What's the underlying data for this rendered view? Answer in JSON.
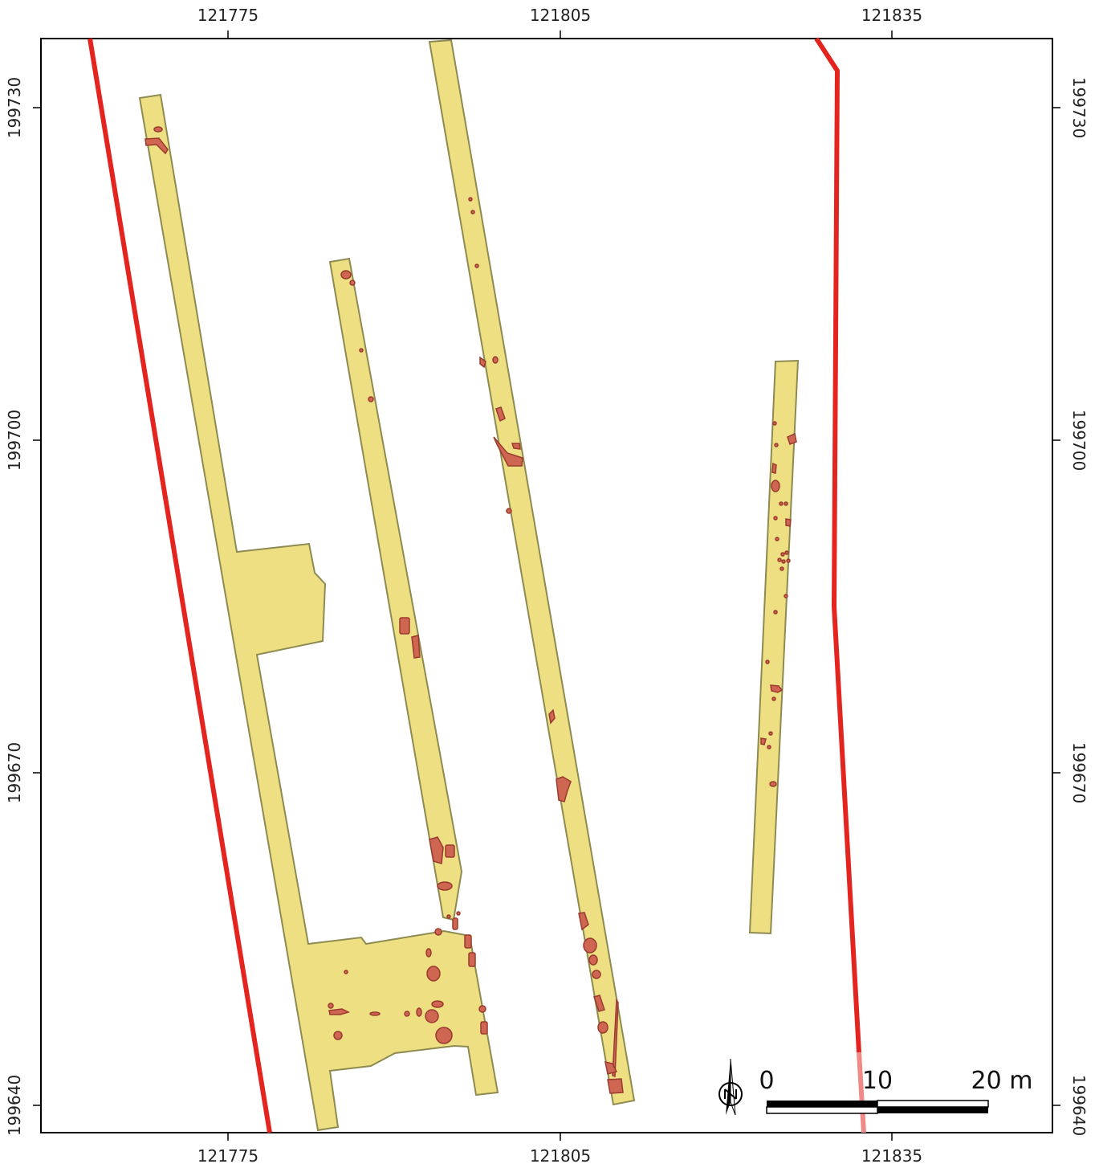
{
  "map": {
    "x_ticks": [
      "121775",
      "121805",
      "121835"
    ],
    "y_ticks": [
      "199730",
      "199700",
      "199670",
      "199640"
    ]
  },
  "scale_bar": {
    "labels": [
      "0",
      "10",
      "20 m"
    ]
  },
  "north_arrow": {
    "icon": "north-arrow-icon"
  },
  "colors": {
    "trench_fill": "#eee082",
    "feature_fill": "#cf6652",
    "boundary": "#e3241f",
    "frame": "#000000"
  }
}
